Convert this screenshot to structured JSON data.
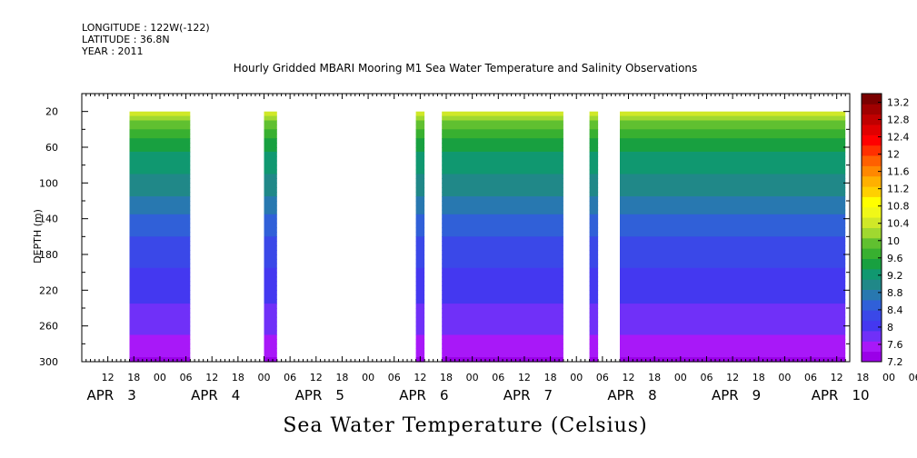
{
  "header": {
    "longitude": "LONGITUDE : 122W(-122)",
    "latitude": "LATITUDE : 36.8N",
    "year": "YEAR : 2011"
  },
  "chart_data": {
    "type": "heatmap",
    "title": "Hourly Gridded MBARI Mooring M1 Sea Water Temperature and Salinity Observations",
    "bottom_title": "Sea Water Temperature (Celsius)",
    "ylabel": "DEPTH (m)",
    "xlabel": "",
    "y_axis": {
      "range": [
        0,
        300
      ],
      "inverted": true,
      "ticks": [
        20,
        60,
        100,
        140,
        180,
        220,
        260,
        300
      ],
      "data_depth_range": [
        20,
        300
      ]
    },
    "x_axis": {
      "start": "APR 3 06:00",
      "end": "APR 10 15:00",
      "hour_ticks": [
        "12",
        "18",
        "00",
        "06",
        "12",
        "18",
        "00",
        "06",
        "12",
        "18",
        "00",
        "06",
        "12",
        "18",
        "00",
        "06",
        "12",
        "18",
        "00",
        "06",
        "12",
        "18",
        "00",
        "06",
        "12",
        "18",
        "00",
        "06",
        "12",
        "18",
        "00",
        "06"
      ],
      "day_labels": [
        "APR 3",
        "APR 4",
        "APR 5",
        "APR 6",
        "APR 7",
        "APR 8",
        "APR 9",
        "APR 10"
      ]
    },
    "data_segments": [
      {
        "start": "APR 3 17:00",
        "end": "APR 4 07:00"
      },
      {
        "start": "APR 5 00:00",
        "end": "APR 5 03:00"
      },
      {
        "start": "APR 6 11:00",
        "end": "APR 6 13:00"
      },
      {
        "start": "APR 6 17:00",
        "end": "APR 7 21:00"
      },
      {
        "start": "APR 8 03:00",
        "end": "APR 8 05:00"
      },
      {
        "start": "APR 8 10:00",
        "end": "APR 10 14:00"
      }
    ],
    "temperature_profile": [
      {
        "depth": 20,
        "value": 10.4
      },
      {
        "depth": 40,
        "value": 9.8
      },
      {
        "depth": 60,
        "value": 9.4
      },
      {
        "depth": 80,
        "value": 9.2
      },
      {
        "depth": 100,
        "value": 9.0
      },
      {
        "depth": 120,
        "value": 8.8
      },
      {
        "depth": 140,
        "value": 8.6
      },
      {
        "depth": 160,
        "value": 8.4
      },
      {
        "depth": 180,
        "value": 8.3
      },
      {
        "depth": 200,
        "value": 8.1
      },
      {
        "depth": 220,
        "value": 8.0
      },
      {
        "depth": 240,
        "value": 7.9
      },
      {
        "depth": 260,
        "value": 7.8
      },
      {
        "depth": 280,
        "value": 7.6
      },
      {
        "depth": 300,
        "value": 7.4
      }
    ],
    "colorbar": {
      "min": 7.2,
      "max": 13.4,
      "labels": [
        "13.2",
        "12.8",
        "12.4",
        "12",
        "11.6",
        "11.2",
        "10.8",
        "10.4",
        "10",
        "9.6",
        "9.2",
        "8.8",
        "8.4",
        "8",
        "7.6",
        "7.2"
      ],
      "colors": [
        "#9a00e8",
        "#a818f8",
        "#7030f8",
        "#4438f0",
        "#3a48e8",
        "#3060d8",
        "#2878b0",
        "#208888",
        "#109870",
        "#18a040",
        "#38b030",
        "#60c030",
        "#a0d830",
        "#d0e828",
        "#f0f818",
        "#ffff00",
        "#ffd000",
        "#ffb000",
        "#ff8800",
        "#ff6000",
        "#ff3000",
        "#ff0000",
        "#e00000",
        "#c00000",
        "#a00000",
        "#7a0000"
      ]
    }
  }
}
